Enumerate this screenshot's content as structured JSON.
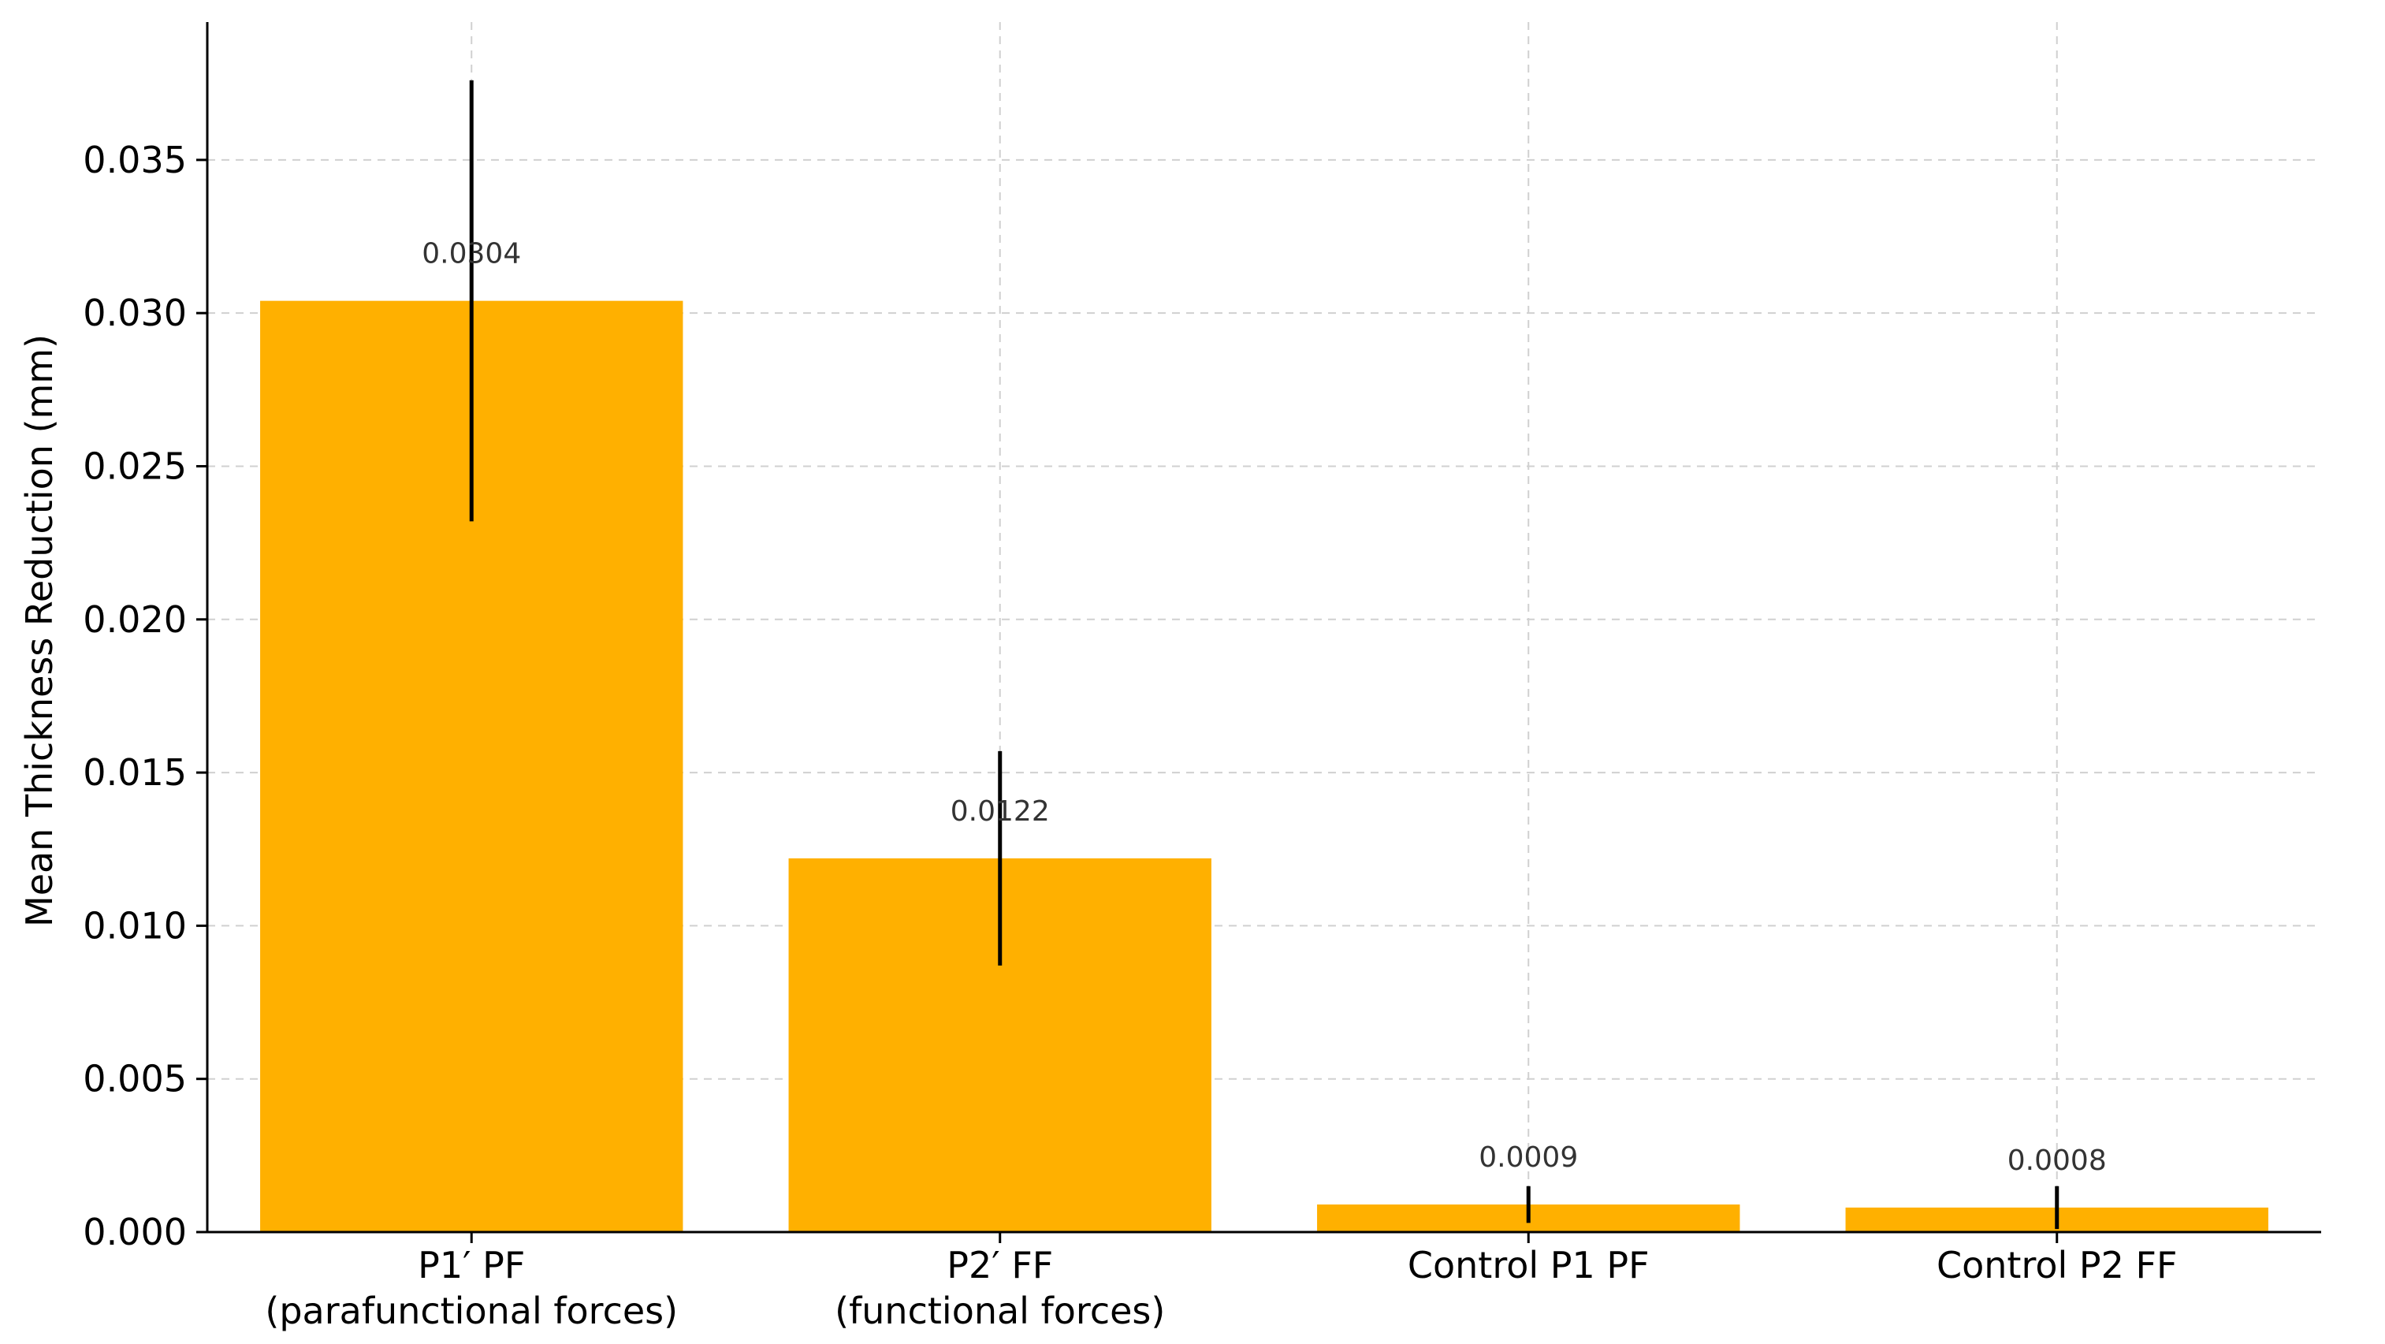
{
  "chart_data": {
    "type": "bar",
    "title": "",
    "xlabel": "",
    "ylabel": "Mean Thickness Reduction (mm)",
    "ylim": [
      0,
      0.0395
    ],
    "yticks": [
      "0.000",
      "0.005",
      "0.010",
      "0.015",
      "0.020",
      "0.025",
      "0.030",
      "0.035"
    ],
    "grid": true,
    "bar_color": "#FFB000",
    "categories": [
      {
        "line1": "P1′ PF",
        "line2": "(parafunctional forces)"
      },
      {
        "line1": "P2′ FF",
        "line2": "(functional forces)"
      },
      {
        "line1": "Control P1 PF",
        "line2": ""
      },
      {
        "line1": "Control P2 FF",
        "line2": ""
      }
    ],
    "values": [
      0.0304,
      0.0122,
      0.0009,
      0.0008
    ],
    "value_labels": [
      "0.0304",
      "0.0122",
      "0.0009",
      "0.0008"
    ],
    "errors": [
      0.0072,
      0.0035,
      0.0006,
      0.0007
    ]
  }
}
